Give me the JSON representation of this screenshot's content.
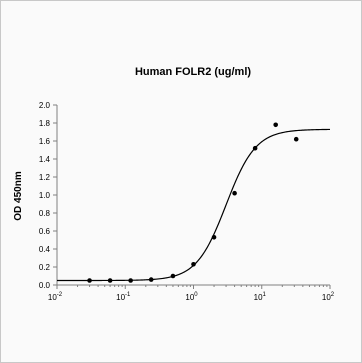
{
  "chart_data": {
    "type": "scatter",
    "title": "Human FOLR2 (ug/ml)",
    "xlabel": "",
    "ylabel": "OD 450nm",
    "xscale": "log",
    "xlim": [
      0.01,
      100
    ],
    "ylim": [
      0.0,
      2.0
    ],
    "grid": false,
    "legend": "none",
    "x_tick_labels": [
      {
        "base": "10",
        "exp": "-2"
      },
      {
        "base": "10",
        "exp": "-1"
      },
      {
        "base": "10",
        "exp": "0"
      },
      {
        "base": "10",
        "exp": "1"
      },
      {
        "base": "10",
        "exp": "2"
      }
    ],
    "y_ticks": [
      "0.0",
      "0.2",
      "0.4",
      "0.6",
      "0.8",
      "1.0",
      "1.2",
      "1.4",
      "1.6",
      "1.8",
      "2.0"
    ],
    "points": {
      "x": [
        0.03,
        0.06,
        0.12,
        0.24,
        0.5,
        1.0,
        2.0,
        4.0,
        8.0,
        16.0,
        32.0
      ],
      "y": [
        0.05,
        0.05,
        0.05,
        0.06,
        0.1,
        0.23,
        0.53,
        1.02,
        1.52,
        1.78,
        1.62
      ]
    },
    "fit_curve": {
      "model": "4PL",
      "bottom": 0.05,
      "top": 1.73,
      "ec50": 3.0,
      "hill": 2.0
    },
    "colors": {
      "points": "#000000",
      "curve": "#000000",
      "axis": "#808080"
    }
  }
}
